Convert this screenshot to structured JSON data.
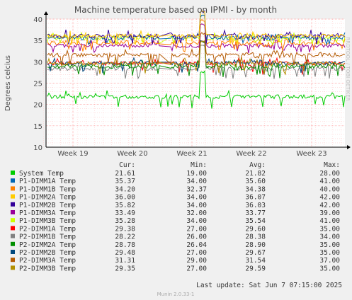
{
  "chart_data": {
    "type": "line",
    "title": "Machine temperature based on IPMI - by month",
    "ylabel": "Degrees celcius",
    "watermark": "RRDTOOL / TOBI OETIKER",
    "ylim": [
      10,
      40
    ],
    "y_ticks": [
      10,
      15,
      20,
      25,
      30,
      35,
      40
    ],
    "x_ticks": [
      "Week 19",
      "Week 20",
      "Week 21",
      "Week 22",
      "Week 23"
    ],
    "grid": true,
    "legend_headers": [
      "Cur:",
      "Min:",
      "Avg:",
      "Max:"
    ],
    "series": [
      {
        "name": "System Temp",
        "color": "#00cc00",
        "cur": "21.61",
        "min": "19.00",
        "avg": "21.82",
        "max": "28.00"
      },
      {
        "name": "P1-DIMM1A Temp",
        "color": "#0066b3",
        "cur": "35.37",
        "min": "34.00",
        "avg": "35.60",
        "max": "41.00"
      },
      {
        "name": "P1-DIMM1B Temp",
        "color": "#ff8000",
        "cur": "34.20",
        "min": "32.37",
        "avg": "34.38",
        "max": "40.00"
      },
      {
        "name": "P1-DIMM2A Temp",
        "color": "#ffcc00",
        "cur": "36.00",
        "min": "34.00",
        "avg": "36.07",
        "max": "42.00"
      },
      {
        "name": "P1-DIMM2B Temp",
        "color": "#330099",
        "cur": "35.82",
        "min": "34.00",
        "avg": "36.03",
        "max": "42.00"
      },
      {
        "name": "P1-DIMM3A Temp",
        "color": "#990099",
        "cur": "33.49",
        "min": "32.00",
        "avg": "33.77",
        "max": "39.00"
      },
      {
        "name": "P1-DIMM3B Temp",
        "color": "#ccff00",
        "cur": "35.28",
        "min": "34.00",
        "avg": "35.54",
        "max": "41.00"
      },
      {
        "name": "P2-DIMM1A Temp",
        "color": "#ff0000",
        "cur": "29.38",
        "min": "27.00",
        "avg": "29.60",
        "max": "35.00"
      },
      {
        "name": "P2-DIMM1B Temp",
        "color": "#808080",
        "cur": "28.22",
        "min": "26.00",
        "avg": "28.38",
        "max": "34.00"
      },
      {
        "name": "P2-DIMM2A Temp",
        "color": "#008f00",
        "cur": "28.78",
        "min": "26.04",
        "avg": "28.90",
        "max": "35.00"
      },
      {
        "name": "P2-DIMM2B Temp",
        "color": "#00487d",
        "cur": "29.48",
        "min": "27.00",
        "avg": "29.67",
        "max": "35.00"
      },
      {
        "name": "P2-DIMM3A Temp",
        "color": "#b35a00",
        "cur": "31.31",
        "min": "29.00",
        "avg": "31.54",
        "max": "37.00"
      },
      {
        "name": "P2-DIMM3B Temp",
        "color": "#b38f00",
        "cur": "29.35",
        "min": "27.00",
        "avg": "29.59",
        "max": "35.00"
      }
    ],
    "last_update": "Last update:  Sat Jun  7 07:15:00 2025",
    "footer": "Munin 2.0.33-1"
  }
}
